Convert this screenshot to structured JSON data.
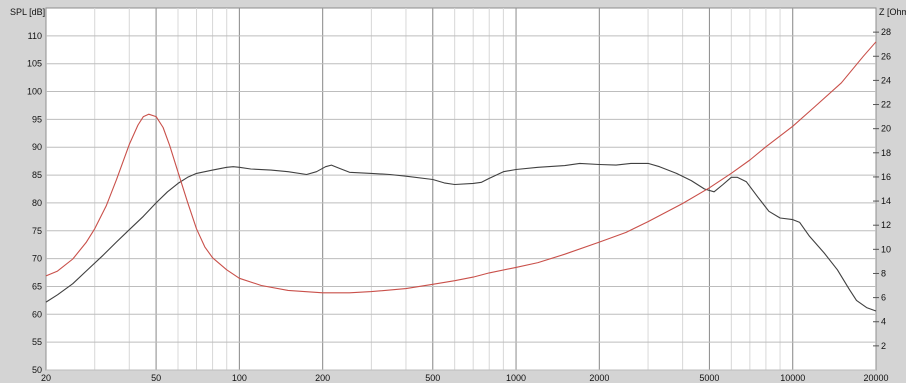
{
  "chart_data": {
    "type": "line",
    "left_axis_label": "SPL [dB]",
    "right_axis_label": "Z [Ohm]",
    "x_scale": "log",
    "xlim": [
      20,
      20000
    ],
    "ylim_left": [
      50,
      115
    ],
    "ylim_right": [
      0,
      30
    ],
    "x_ticks": [
      20,
      50,
      100,
      200,
      500,
      1000,
      2000,
      5000,
      10000,
      20000
    ],
    "y_left_ticks": [
      50,
      55,
      60,
      65,
      70,
      75,
      80,
      85,
      90,
      95,
      100,
      105,
      110
    ],
    "y_right_ticks": [
      2,
      4,
      6,
      8,
      10,
      12,
      14,
      16,
      18,
      20,
      22,
      24,
      26,
      28
    ],
    "grid": true,
    "series": [
      {
        "axis": "left",
        "color": "#404040",
        "points": [
          [
            20,
            62.2
          ],
          [
            22,
            63.5
          ],
          [
            25,
            65.5
          ],
          [
            28,
            67.8
          ],
          [
            32,
            70.5
          ],
          [
            36,
            73
          ],
          [
            40,
            75.2
          ],
          [
            45,
            77.6
          ],
          [
            50,
            80
          ],
          [
            55,
            82
          ],
          [
            60,
            83.5
          ],
          [
            65,
            84.6
          ],
          [
            70,
            85.3
          ],
          [
            80,
            85.9
          ],
          [
            90,
            86.4
          ],
          [
            95,
            86.5
          ],
          [
            100,
            86.4
          ],
          [
            110,
            86.1
          ],
          [
            130,
            85.9
          ],
          [
            150,
            85.6
          ],
          [
            175,
            85.1
          ],
          [
            190,
            85.6
          ],
          [
            205,
            86.5
          ],
          [
            215,
            86.8
          ],
          [
            230,
            86.2
          ],
          [
            250,
            85.5
          ],
          [
            300,
            85.3
          ],
          [
            350,
            85.1
          ],
          [
            400,
            84.8
          ],
          [
            500,
            84.2
          ],
          [
            550,
            83.6
          ],
          [
            600,
            83.3
          ],
          [
            700,
            83.5
          ],
          [
            750,
            83.7
          ],
          [
            800,
            84.4
          ],
          [
            900,
            85.6
          ],
          [
            1000,
            86
          ],
          [
            1200,
            86.4
          ],
          [
            1500,
            86.7
          ],
          [
            1700,
            87.1
          ],
          [
            2000,
            86.9
          ],
          [
            2300,
            86.8
          ],
          [
            2600,
            87.1
          ],
          [
            3000,
            87.1
          ],
          [
            3300,
            86.5
          ],
          [
            3800,
            85.3
          ],
          [
            4300,
            84
          ],
          [
            4800,
            82.5
          ],
          [
            5200,
            82
          ],
          [
            5600,
            83.3
          ],
          [
            6000,
            84.6
          ],
          [
            6300,
            84.6
          ],
          [
            6800,
            83.8
          ],
          [
            7500,
            81
          ],
          [
            8200,
            78.5
          ],
          [
            9000,
            77.3
          ],
          [
            10000,
            77
          ],
          [
            10600,
            76.5
          ],
          [
            11500,
            74
          ],
          [
            13000,
            71
          ],
          [
            14500,
            68
          ],
          [
            16000,
            64.5
          ],
          [
            17000,
            62.5
          ],
          [
            18500,
            61.2
          ],
          [
            20000,
            60.6
          ]
        ]
      },
      {
        "axis": "right",
        "color": "#c9504a",
        "points": [
          [
            20,
            7.8
          ],
          [
            22,
            8.2
          ],
          [
            25,
            9.2
          ],
          [
            28,
            10.6
          ],
          [
            30,
            11.7
          ],
          [
            33,
            13.6
          ],
          [
            36,
            15.8
          ],
          [
            40,
            18.7
          ],
          [
            43,
            20.3
          ],
          [
            45,
            21
          ],
          [
            47,
            21.2
          ],
          [
            50,
            21
          ],
          [
            53,
            20.1
          ],
          [
            56,
            18.6
          ],
          [
            60,
            16.4
          ],
          [
            65,
            13.9
          ],
          [
            70,
            11.7
          ],
          [
            75,
            10.2
          ],
          [
            80,
            9.3
          ],
          [
            90,
            8.3
          ],
          [
            100,
            7.6
          ],
          [
            120,
            7
          ],
          [
            150,
            6.6
          ],
          [
            200,
            6.4
          ],
          [
            250,
            6.4
          ],
          [
            300,
            6.5
          ],
          [
            400,
            6.75
          ],
          [
            500,
            7.1
          ],
          [
            600,
            7.4
          ],
          [
            700,
            7.7
          ],
          [
            800,
            8.05
          ],
          [
            1000,
            8.5
          ],
          [
            1200,
            8.9
          ],
          [
            1500,
            9.6
          ],
          [
            2000,
            10.6
          ],
          [
            2500,
            11.4
          ],
          [
            3000,
            12.3
          ],
          [
            4000,
            13.8
          ],
          [
            5000,
            15.1
          ],
          [
            6000,
            16.3
          ],
          [
            7000,
            17.4
          ],
          [
            8000,
            18.5
          ],
          [
            10000,
            20.2
          ],
          [
            12000,
            21.8
          ],
          [
            15000,
            23.8
          ],
          [
            18000,
            26
          ],
          [
            20000,
            27.2
          ]
        ]
      }
    ]
  }
}
